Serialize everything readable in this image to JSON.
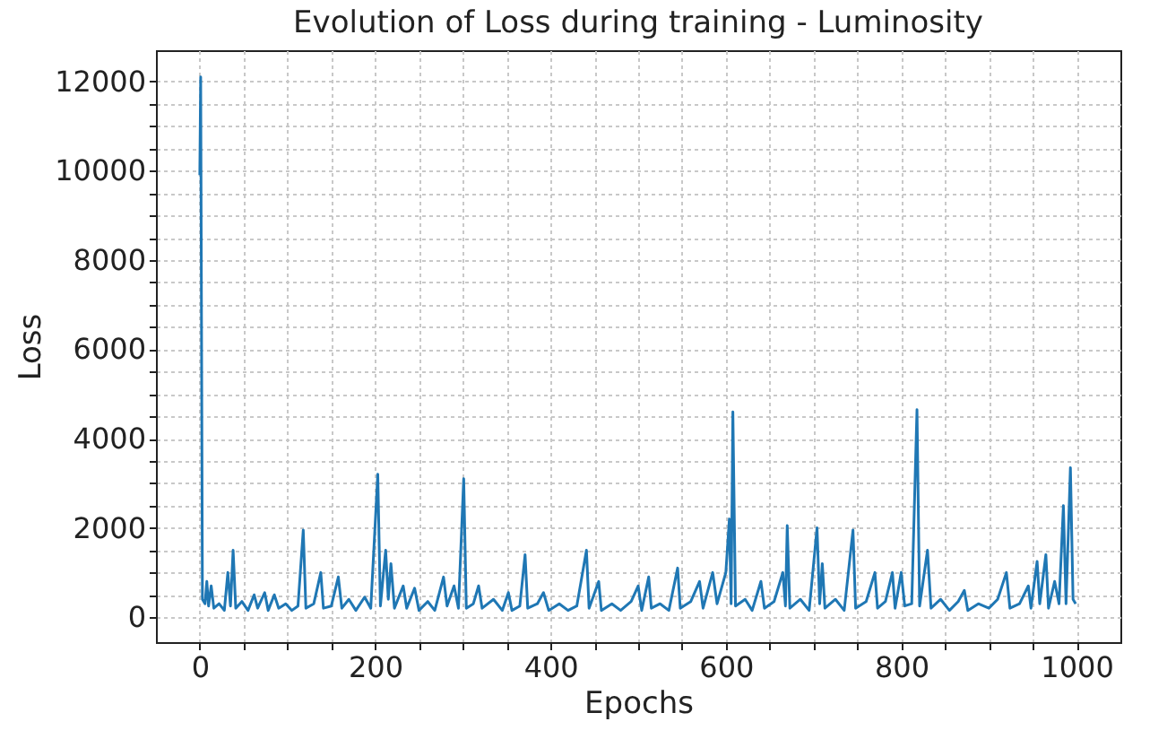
{
  "chart_data": {
    "type": "line",
    "title": "Evolution of Loss during training - Luminosity",
    "xlabel": "Epochs",
    "ylabel": "Loss",
    "xlim": [
      -50,
      1050
    ],
    "ylim": [
      -560,
      12700
    ],
    "xticks": [
      0,
      200,
      400,
      600,
      800,
      1000
    ],
    "yticks": [
      0,
      2000,
      4000,
      6000,
      8000,
      10000,
      12000
    ],
    "grid": true,
    "series": [
      {
        "color": "#1f77b4",
        "x": [
          0,
          1,
          3,
          6,
          8,
          10,
          13,
          16,
          22,
          28,
          32,
          35,
          38,
          41,
          48,
          55,
          62,
          66,
          74,
          78,
          85,
          90,
          98,
          105,
          112,
          118,
          121,
          130,
          138,
          141,
          150,
          158,
          162,
          170,
          178,
          188,
          195,
          203,
          206,
          212,
          215,
          218,
          222,
          232,
          236,
          245,
          250,
          260,
          268,
          278,
          282,
          290,
          295,
          301,
          304,
          312,
          318,
          322,
          335,
          345,
          352,
          356,
          365,
          371,
          374,
          385,
          392,
          398,
          410,
          420,
          430,
          441,
          444,
          455,
          458,
          470,
          480,
          492,
          500,
          504,
          512,
          515,
          525,
          535,
          545,
          548,
          560,
          570,
          574,
          585,
          590,
          600,
          604,
          606,
          608,
          611,
          622,
          630,
          640,
          644,
          655,
          665,
          668,
          670,
          673,
          685,
          695,
          704,
          707,
          710,
          713,
          725,
          735,
          745,
          748,
          760,
          770,
          773,
          782,
          790,
          793,
          800,
          804,
          812,
          818,
          821,
          830,
          834,
          845,
          855,
          865,
          872,
          876,
          888,
          900,
          910,
          920,
          924,
          935,
          945,
          948,
          955,
          958,
          965,
          968,
          975,
          980,
          985,
          988,
          993,
          996,
          999
        ],
        "values": [
          9900,
          12100,
          400,
          300,
          800,
          250,
          700,
          200,
          300,
          150,
          1000,
          250,
          1500,
          200,
          350,
          150,
          500,
          200,
          550,
          150,
          500,
          200,
          300,
          150,
          250,
          1950,
          200,
          300,
          1000,
          200,
          250,
          900,
          200,
          400,
          150,
          450,
          200,
          3200,
          250,
          1500,
          400,
          1200,
          200,
          700,
          200,
          650,
          150,
          350,
          150,
          900,
          250,
          700,
          200,
          3100,
          200,
          300,
          700,
          200,
          400,
          150,
          550,
          150,
          250,
          1400,
          200,
          300,
          550,
          150,
          300,
          150,
          250,
          1500,
          200,
          800,
          150,
          300,
          150,
          350,
          700,
          150,
          900,
          200,
          300,
          150,
          1100,
          200,
          350,
          800,
          200,
          1000,
          300,
          1000,
          2200,
          300,
          4600,
          250,
          400,
          150,
          800,
          200,
          350,
          1000,
          250,
          2050,
          200,
          400,
          150,
          2000,
          300,
          1200,
          200,
          400,
          150,
          1950,
          200,
          350,
          1000,
          200,
          350,
          1000,
          200,
          1000,
          250,
          300,
          4650,
          250,
          1500,
          200,
          400,
          150,
          350,
          600,
          150,
          300,
          200,
          400,
          1000,
          200,
          300,
          700,
          200,
          1250,
          300,
          1400,
          200,
          800,
          300,
          2500,
          300,
          3350,
          400,
          300
        ]
      }
    ]
  }
}
